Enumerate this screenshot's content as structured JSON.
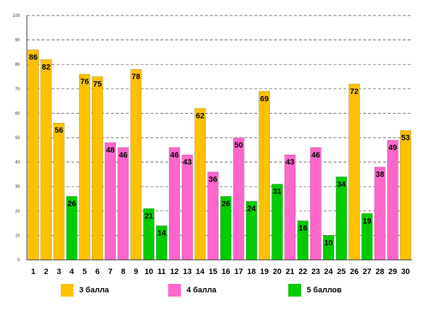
{
  "chart_data": {
    "type": "bar",
    "categories": [
      "1",
      "2",
      "3",
      "4",
      "5",
      "6",
      "7",
      "8",
      "9",
      "10",
      "11",
      "12",
      "13",
      "14",
      "15",
      "16",
      "17",
      "18",
      "19",
      "20",
      "21",
      "22",
      "23",
      "24",
      "25",
      "26",
      "27",
      "28",
      "29",
      "30"
    ],
    "values": [
      86,
      82,
      56,
      26,
      76,
      75,
      48,
      46,
      78,
      21,
      14,
      46,
      43,
      62,
      36,
      26,
      50,
      24,
      69,
      31,
      43,
      16,
      46,
      10,
      34,
      72,
      19,
      38,
      49,
      53
    ],
    "groups": [
      "3",
      "3",
      "3",
      "5",
      "3",
      "3",
      "4",
      "4",
      "3",
      "5",
      "5",
      "4",
      "4",
      "3",
      "4",
      "5",
      "4",
      "5",
      "3",
      "5",
      "4",
      "5",
      "4",
      "5",
      "5",
      "3",
      "5",
      "4",
      "4",
      "3"
    ],
    "series": [
      {
        "key": "3",
        "name": "3 балла",
        "color": "#FFC000"
      },
      {
        "key": "4",
        "name": "4 балла",
        "color": "#FF66CC"
      },
      {
        "key": "5",
        "name": "5 баллов",
        "color": "#00CC00"
      }
    ],
    "yticks": [
      "0",
      "10",
      "20",
      "30",
      "40",
      "50",
      "60",
      "70",
      "80",
      "90",
      "100"
    ],
    "ylim": [
      0,
      100
    ],
    "grid": true,
    "legend_position": "bottom"
  }
}
